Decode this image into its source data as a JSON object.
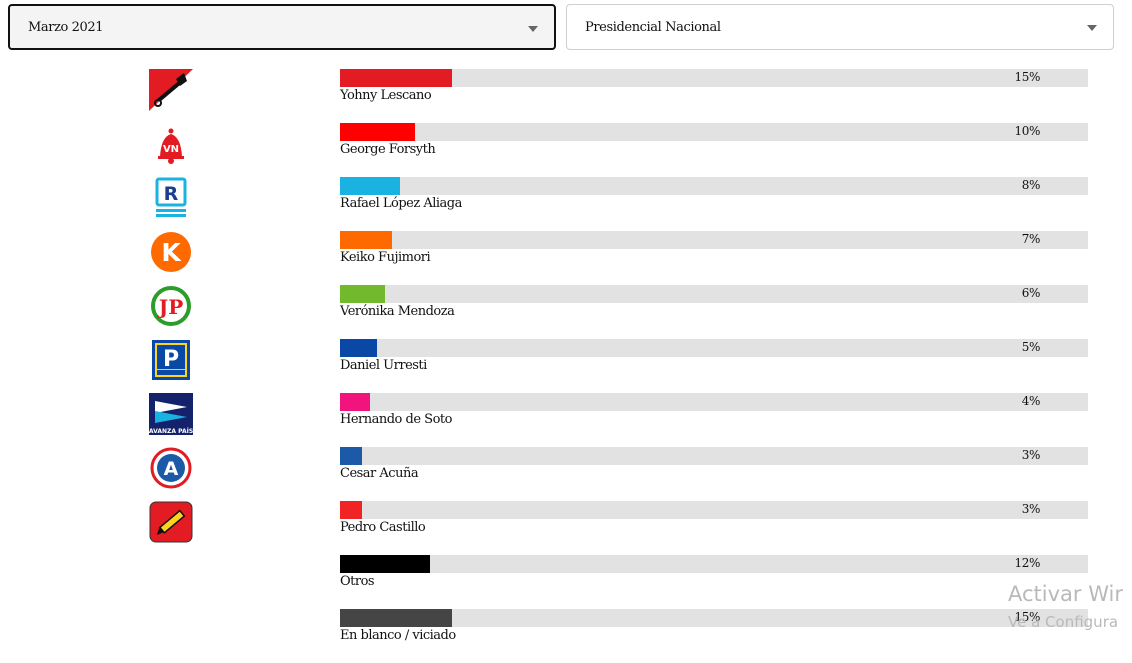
{
  "filters": {
    "period": "Marzo 2021",
    "scope": "Presidencial Nacional"
  },
  "watermark": {
    "line1": "Activar Wir",
    "line2": "Ve a Configura"
  },
  "chart_data": {
    "type": "bar",
    "orientation": "horizontal",
    "xlim": [
      0,
      100
    ],
    "categories": [
      "Yohny Lescano",
      "George Forsyth",
      "Rafael López Aliaga",
      "Keiko Fujimori",
      "Verónika Mendoza",
      "Daniel Urresti",
      "Hernando de Soto",
      "Cesar Acuña",
      "Pedro Castillo",
      "Otros",
      "En blanco / viciado"
    ],
    "values": [
      15,
      10,
      8,
      7,
      6,
      5,
      4,
      3,
      3,
      12,
      15
    ],
    "value_labels": [
      "15%",
      "10%",
      "8%",
      "7%",
      "6%",
      "5%",
      "4%",
      "3%",
      "3%",
      "12%",
      "15%"
    ],
    "colors": [
      "#e31b23",
      "#ff0000",
      "#1ab2e0",
      "#ff6a00",
      "#72b92e",
      "#0a48a6",
      "#f0147c",
      "#1c59a6",
      "#f02424",
      "#000000",
      "#454545"
    ],
    "logos": [
      "shovel-logo-icon",
      "bell-vn-logo-icon",
      "renovacion-popular-logo-icon",
      "k-logo-icon",
      "jp-logo-icon",
      "podemos-logo-icon",
      "avanza-pais-logo-icon",
      "a-logo-icon",
      "pencil-logo-icon",
      "",
      ""
    ]
  }
}
